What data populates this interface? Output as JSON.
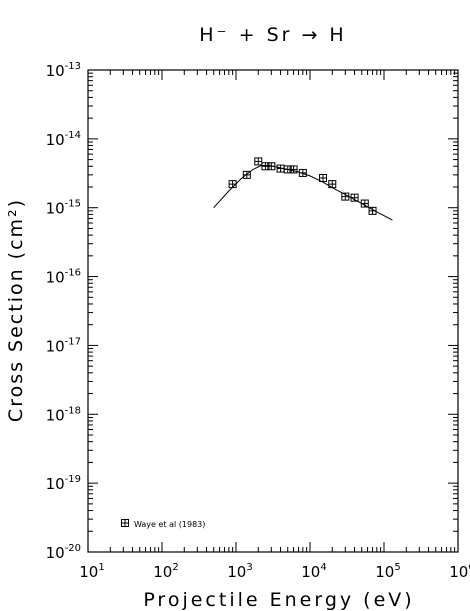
{
  "chart_data": {
    "type": "scatter",
    "title": "H⁻ + Sr → H",
    "xlabel": "Projectile Energy (eV)",
    "ylabel": "Cross Section (cm²)",
    "x_scale": "log",
    "y_scale": "log",
    "xlim": [
      10,
      1000000
    ],
    "ylim": [
      1e-20,
      1e-13
    ],
    "x_ticks": [
      {
        "base": "10",
        "exp": "1",
        "value": 10
      },
      {
        "base": "10",
        "exp": "2",
        "value": 100
      },
      {
        "base": "10",
        "exp": "3",
        "value": 1000
      },
      {
        "base": "10",
        "exp": "4",
        "value": 10000
      },
      {
        "base": "10",
        "exp": "5",
        "value": 100000
      },
      {
        "base": "10",
        "exp": "6",
        "value": 1000000
      }
    ],
    "y_ticks": [
      {
        "base": "10",
        "exp": "-13",
        "value": 1e-13
      },
      {
        "base": "10",
        "exp": "-14",
        "value": 1e-14
      },
      {
        "base": "10",
        "exp": "-15",
        "value": 1e-15
      },
      {
        "base": "10",
        "exp": "-16",
        "value": 1e-16
      },
      {
        "base": "10",
        "exp": "-17",
        "value": 1e-17
      },
      {
        "base": "10",
        "exp": "-18",
        "value": 1e-18
      },
      {
        "base": "10",
        "exp": "-19",
        "value": 1e-19
      },
      {
        "base": "10",
        "exp": "-20",
        "value": 1e-20
      }
    ],
    "legend": {
      "label": "Waye et al (1983)",
      "placement": "bottom-left"
    },
    "series": [
      {
        "name": "Waye et al (1983)",
        "kind": "points",
        "marker": "boxed-cross",
        "x": [
          900,
          1400,
          2000,
          2500,
          3000,
          4000,
          5000,
          6000,
          8000,
          15000,
          20000,
          30000,
          40000,
          55000,
          70000
        ],
        "y": [
          2.2e-15,
          3e-15,
          4.7e-15,
          4e-15,
          4e-15,
          3.7e-15,
          3.6e-15,
          3.6e-15,
          3.2e-15,
          2.7e-15,
          2.2e-15,
          1.45e-15,
          1.4e-15,
          1.15e-15,
          9e-16
        ]
      },
      {
        "kind": "curve",
        "x": [
          500,
          800,
          1200,
          1700,
          2200,
          2800,
          3500,
          5000,
          7000,
          10000,
          15000,
          20000,
          30000,
          50000,
          80000,
          130000
        ],
        "y": [
          1e-15,
          1.75e-15,
          2.7e-15,
          3.6e-15,
          4.1e-15,
          4.1e-15,
          3.9e-15,
          3.6e-15,
          3.3e-15,
          2.9e-15,
          2.35e-15,
          1.95e-15,
          1.55e-15,
          1.15e-15,
          8.7e-16,
          6.6e-16
        ]
      }
    ]
  }
}
